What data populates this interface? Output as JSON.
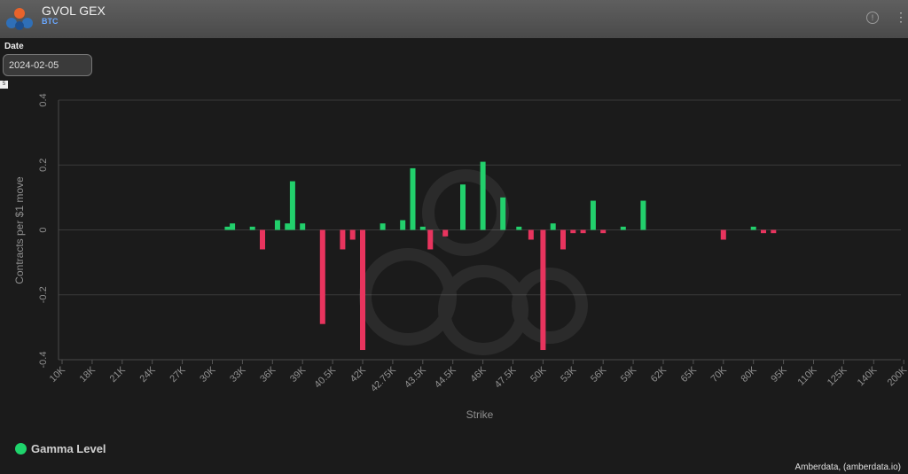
{
  "header": {
    "title": "GVOL GEX",
    "subtitle": "BTC",
    "info_icon": "info-icon",
    "menu_icon": "kebab-menu-icon"
  },
  "filters": {
    "date_label": "Date",
    "date_value": "2024-02-05"
  },
  "badge": "5",
  "colors": {
    "positive": "#22d06c",
    "negative": "#e8345e",
    "grid": "#3a3a3a",
    "axis_text": "#8f8f8f"
  },
  "legend": {
    "label": "Gamma Level",
    "color": "#1fd46c"
  },
  "credit": "Amberdata, (amberdata.io)",
  "chart_data": {
    "type": "bar",
    "xlabel": "Strike",
    "ylabel": "Contracts per $1 move",
    "ylim": [
      -0.4,
      0.4
    ],
    "yticks": [
      "0.4",
      "0.2",
      "0",
      "-0.2",
      "-0.4"
    ],
    "ytick_values": [
      0.4,
      0.2,
      0,
      -0.2,
      -0.4
    ],
    "grid": true,
    "legend_position": "bottom-left",
    "xtick_labels": [
      "10K",
      "18K",
      "21K",
      "24K",
      "27K",
      "30K",
      "33K",
      "36K",
      "39K",
      "40.5K",
      "42K",
      "42.75K",
      "43.5K",
      "44.5K",
      "46K",
      "47.5K",
      "50K",
      "53K",
      "56K",
      "59K",
      "62K",
      "65K",
      "70K",
      "80K",
      "95K",
      "110K",
      "125K",
      "140K",
      "200K"
    ],
    "bars": [
      {
        "x": 31500,
        "value": 0.01
      },
      {
        "x": 32000,
        "value": 0.02
      },
      {
        "x": 34000,
        "value": 0.01
      },
      {
        "x": 35000,
        "value": -0.06
      },
      {
        "x": 36500,
        "value": 0.03
      },
      {
        "x": 37500,
        "value": 0.02
      },
      {
        "x": 38000,
        "value": 0.15
      },
      {
        "x": 39000,
        "value": 0.02
      },
      {
        "x": 40000,
        "value": -0.29
      },
      {
        "x": 41000,
        "value": -0.06
      },
      {
        "x": 41500,
        "value": -0.03
      },
      {
        "x": 42000,
        "value": -0.37
      },
      {
        "x": 42500,
        "value": 0.02
      },
      {
        "x": 43000,
        "value": 0.03
      },
      {
        "x": 43250,
        "value": 0.19
      },
      {
        "x": 43500,
        "value": 0.01
      },
      {
        "x": 43750,
        "value": -0.06
      },
      {
        "x": 44250,
        "value": -0.02
      },
      {
        "x": 45000,
        "value": 0.14
      },
      {
        "x": 46000,
        "value": 0.21
      },
      {
        "x": 47000,
        "value": 0.1
      },
      {
        "x": 48000,
        "value": 0.01
      },
      {
        "x": 49000,
        "value": -0.03
      },
      {
        "x": 50000,
        "value": -0.37
      },
      {
        "x": 51000,
        "value": 0.02
      },
      {
        "x": 52000,
        "value": -0.06
      },
      {
        "x": 53000,
        "value": -0.01
      },
      {
        "x": 54000,
        "value": -0.01
      },
      {
        "x": 55000,
        "value": 0.09
      },
      {
        "x": 56000,
        "value": -0.01
      },
      {
        "x": 58000,
        "value": 0.01
      },
      {
        "x": 60000,
        "value": 0.09
      },
      {
        "x": 70000,
        "value": -0.03
      },
      {
        "x": 80000,
        "value": 0.01
      },
      {
        "x": 85000,
        "value": -0.01
      },
      {
        "x": 90000,
        "value": -0.01
      }
    ]
  }
}
